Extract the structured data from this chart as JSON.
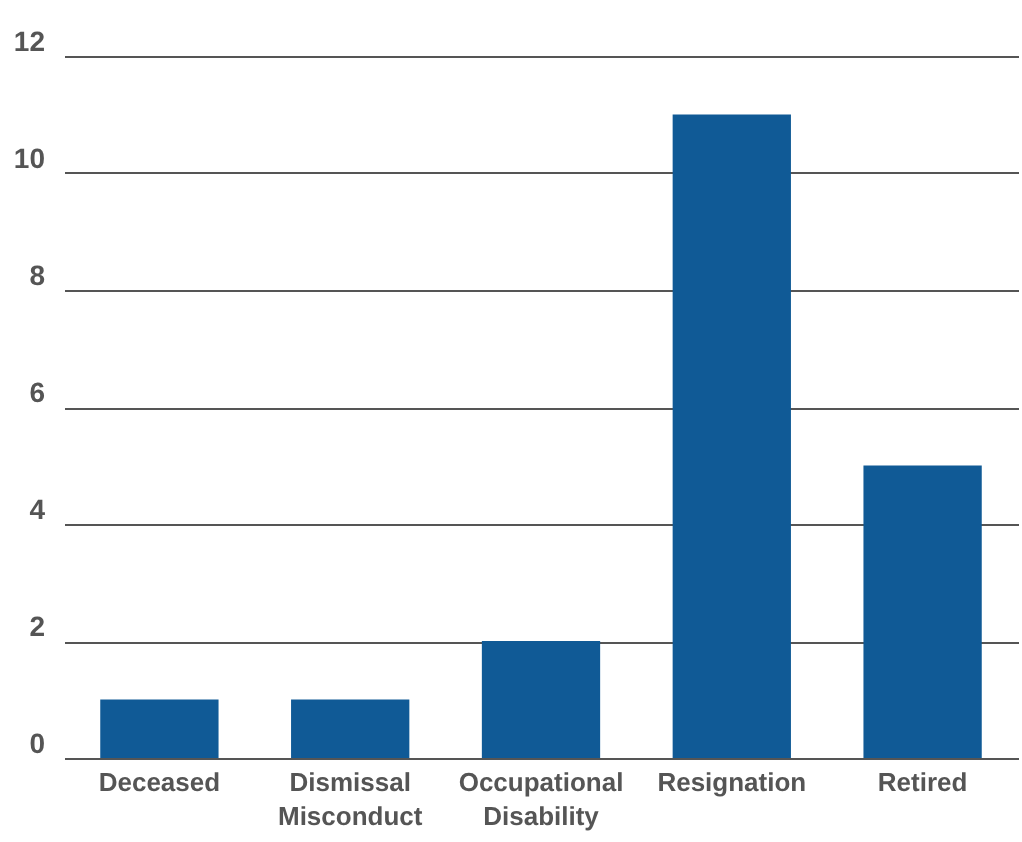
{
  "chart_data": {
    "type": "bar",
    "categories": [
      "Deceased",
      "Dismissal Misconduct",
      "Occupational Disability",
      "Resignation",
      "Retired"
    ],
    "values": [
      1,
      1,
      2,
      11,
      5
    ],
    "color": "#105a96",
    "ylim": [
      0,
      12
    ],
    "yticks": [
      0,
      2,
      4,
      6,
      8,
      10,
      12
    ],
    "grid": "y"
  }
}
